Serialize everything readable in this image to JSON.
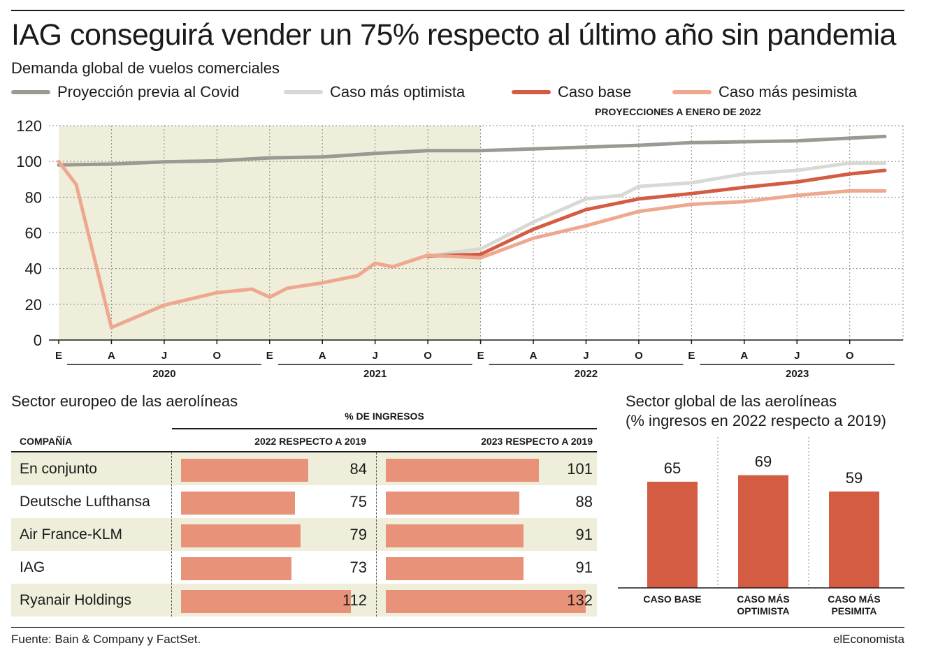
{
  "title": "IAG conseguirá vender un 75% respecto al último año sin pandemia",
  "subtitle": "Demanda global de vuelos comerciales",
  "legend": {
    "previa": "Proyección previa al Covid",
    "optimista": "Caso más optimista",
    "base": "Caso base",
    "pesimista": "Caso más pesimista"
  },
  "colors": {
    "previa": "#9a9992",
    "optimista": "#d8d8d4",
    "base": "#d35c43",
    "pesimista": "#eea88f",
    "shade": "#eeeeda",
    "bar": "#e9927a",
    "bar_global": "#d35c43"
  },
  "proyecciones_label": "PROYECCIONES A ENERO DE 2022",
  "chart_data": [
    {
      "type": "line",
      "ylim": [
        0,
        120
      ],
      "yticks": [
        0,
        20,
        40,
        60,
        80,
        100,
        120
      ],
      "grid": true,
      "shaded_period": [
        "2020-01",
        "2022-01"
      ],
      "xlim": [
        "2020-01",
        "2023-12"
      ],
      "x_tick_labels": [
        {
          "x": "2020-01",
          "label": "E"
        },
        {
          "x": "2020-04",
          "label": "A"
        },
        {
          "x": "2020-07",
          "label": "J"
        },
        {
          "x": "2020-10",
          "label": "O"
        },
        {
          "x": "2021-01",
          "label": "E"
        },
        {
          "x": "2021-04",
          "label": "A"
        },
        {
          "x": "2021-07",
          "label": "J"
        },
        {
          "x": "2021-10",
          "label": "O"
        },
        {
          "x": "2022-01",
          "label": "E"
        },
        {
          "x": "2022-04",
          "label": "A"
        },
        {
          "x": "2022-07",
          "label": "J"
        },
        {
          "x": "2022-10",
          "label": "O"
        },
        {
          "x": "2023-01",
          "label": "E"
        },
        {
          "x": "2023-04",
          "label": "A"
        },
        {
          "x": "2023-07",
          "label": "J"
        },
        {
          "x": "2023-10",
          "label": "O"
        }
      ],
      "year_labels": [
        "2020",
        "2021",
        "2022",
        "2023"
      ],
      "series": [
        {
          "key": "previa",
          "name": "Proyección previa al Covid",
          "x": [
            "2020-01",
            "2020-04",
            "2020-07",
            "2020-10",
            "2021-01",
            "2021-04",
            "2021-07",
            "2021-10",
            "2022-01",
            "2022-04",
            "2022-07",
            "2022-10",
            "2023-01",
            "2023-04",
            "2023-07",
            "2023-10",
            "2023-12"
          ],
          "y": [
            98,
            98.5,
            99.8,
            100.3,
            102,
            102.5,
            104.5,
            106,
            106,
            107,
            108,
            109,
            110.5,
            111,
            111.5,
            113,
            114
          ]
        },
        {
          "key": "optimista",
          "name": "Caso más optimista",
          "x": [
            "2021-10",
            "2022-01",
            "2022-04",
            "2022-07",
            "2022-09",
            "2022-10",
            "2023-01",
            "2023-04",
            "2023-07",
            "2023-10",
            "2023-12"
          ],
          "y": [
            47,
            51,
            66,
            79,
            81,
            86,
            88,
            93,
            95,
            99,
            99
          ]
        },
        {
          "key": "base",
          "name": "Caso base",
          "x": [
            "2021-10",
            "2022-01",
            "2022-04",
            "2022-07",
            "2022-10",
            "2023-01",
            "2023-04",
            "2023-07",
            "2023-10",
            "2023-12"
          ],
          "y": [
            47,
            48,
            62,
            73,
            79,
            82,
            85.5,
            88.5,
            93,
            95
          ]
        },
        {
          "key": "pesimista",
          "name": "Caso más pesimista",
          "x": [
            "2020-01",
            "2020-02",
            "2020-04",
            "2020-07",
            "2020-10",
            "2020-12",
            "2021-01",
            "2021-02",
            "2021-04",
            "2021-06",
            "2021-07",
            "2021-08",
            "2021-10",
            "2022-01",
            "2022-04",
            "2022-07",
            "2022-10",
            "2023-01",
            "2023-04",
            "2023-07",
            "2023-10",
            "2023-12"
          ],
          "y": [
            100,
            87,
            7,
            19.5,
            26.5,
            28.5,
            24,
            29,
            32,
            36,
            43,
            41,
            47.5,
            46,
            57,
            64,
            72,
            76,
            77.5,
            81,
            83.5,
            83.5
          ]
        }
      ]
    },
    {
      "type": "table",
      "title": "Sector europeo de las aerolíneas",
      "group_header": "% DE INGRESOS",
      "columns": [
        "COMPAÑÍA",
        "2022 RESPECTO A 2019",
        "2023 RESPECTO A 2019"
      ],
      "rows": [
        {
          "company": "En conjunto",
          "v2022": 84,
          "v2023": 101
        },
        {
          "company": "Deutsche Lufthansa",
          "v2022": 75,
          "v2023": 88
        },
        {
          "company": "Air France-KLM",
          "v2022": 79,
          "v2023": 91
        },
        {
          "company": "IAG",
          "v2022": 73,
          "v2023": 91
        },
        {
          "company": "Ryanair Holdings",
          "v2022": 112,
          "v2023": 132
        }
      ]
    },
    {
      "type": "bar",
      "title": "Sector global de las aerolíneas",
      "subtitle": "(% ingresos en 2022 respecto a 2019)",
      "categories": [
        "CASO BASE",
        "CASO MÁS OPTIMISTA",
        "CASO MÁS PESIMITA"
      ],
      "category_lines": [
        [
          "CASO BASE"
        ],
        [
          "CASO MÁS",
          "OPTIMISTA"
        ],
        [
          "CASO MÁS",
          "PESIMITA"
        ]
      ],
      "values": [
        65,
        69,
        59
      ]
    }
  ],
  "footer": {
    "source": "Fuente: Bain & Company y FactSet.",
    "brand": "elEconomista"
  }
}
